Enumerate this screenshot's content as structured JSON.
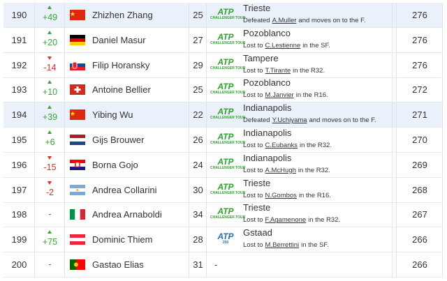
{
  "table": {
    "rows": [
      {
        "rank": "190",
        "change": "+49",
        "flag": "chn",
        "player": "Zhizhen Zhang",
        "age": "25",
        "logo": {
          "mark": "ATP",
          "label": "CHALLENGER TOUR"
        },
        "tournament": "Trieste",
        "result": {
          "prefix": "Defeated",
          "opponent": "A.Muller",
          "suffix": "and moves on to the F."
        },
        "points": "276",
        "highlight": true
      },
      {
        "rank": "191",
        "change": "+20",
        "flag": "ger",
        "player": "Daniel Masur",
        "age": "27",
        "logo": {
          "mark": "ATP",
          "label": "CHALLENGER TOUR"
        },
        "tournament": "Pozoblanco",
        "result": {
          "prefix": "Lost to",
          "opponent": "C.Lestienne",
          "suffix": "in the SF."
        },
        "points": "276",
        "highlight": false
      },
      {
        "rank": "192",
        "change": "-14",
        "flag": "svk",
        "player": "Filip Horansky",
        "age": "29",
        "logo": {
          "mark": "ATP",
          "label": "CHALLENGER TOUR"
        },
        "tournament": "Tampere",
        "result": {
          "prefix": "Lost to",
          "opponent": "T.Tirante",
          "suffix": "in the R32."
        },
        "points": "276",
        "highlight": false
      },
      {
        "rank": "193",
        "change": "+10",
        "flag": "sui",
        "player": "Antoine Bellier",
        "age": "25",
        "logo": {
          "mark": "ATP",
          "label": "CHALLENGER TOUR"
        },
        "tournament": "Pozoblanco",
        "result": {
          "prefix": "Lost to",
          "opponent": "M.Janvier",
          "suffix": "in the R16."
        },
        "points": "272",
        "highlight": false
      },
      {
        "rank": "194",
        "change": "+39",
        "flag": "chn",
        "player": "Yibing Wu",
        "age": "22",
        "logo": {
          "mark": "ATP",
          "label": "CHALLENGER TOUR"
        },
        "tournament": "Indianapolis",
        "result": {
          "prefix": "Defeated",
          "opponent": "Y.Uchiyama",
          "suffix": "and moves on to the F."
        },
        "points": "271",
        "highlight": true
      },
      {
        "rank": "195",
        "change": "+6",
        "flag": "ned",
        "player": "Gijs Brouwer",
        "age": "26",
        "logo": {
          "mark": "ATP",
          "label": "CHALLENGER TOUR"
        },
        "tournament": "Indianapolis",
        "result": {
          "prefix": "Lost to",
          "opponent": "C.Eubanks",
          "suffix": "in the R32."
        },
        "points": "270",
        "highlight": false
      },
      {
        "rank": "196",
        "change": "-15",
        "flag": "cro",
        "player": "Borna Gojo",
        "age": "24",
        "logo": {
          "mark": "ATP",
          "label": "CHALLENGER TOUR"
        },
        "tournament": "Indianapolis",
        "result": {
          "prefix": "Lost to",
          "opponent": "A.McHugh",
          "suffix": "in the R32."
        },
        "points": "269",
        "highlight": false
      },
      {
        "rank": "197",
        "change": "-2",
        "flag": "arg",
        "player": "Andrea Collarini",
        "age": "30",
        "logo": {
          "mark": "ATP",
          "label": "CHALLENGER TOUR"
        },
        "tournament": "Trieste",
        "result": {
          "prefix": "Lost to",
          "opponent": "N.Gombos",
          "suffix": "in the R16."
        },
        "points": "268",
        "highlight": false
      },
      {
        "rank": "198",
        "change": "-",
        "flag": "ita",
        "player": "Andrea Arnaboldi",
        "age": "34",
        "logo": {
          "mark": "ATP",
          "label": "CHALLENGER TOUR"
        },
        "tournament": "Trieste",
        "result": {
          "prefix": "Lost to",
          "opponent": "F.Agamenone",
          "suffix": "in the R32."
        },
        "points": "267",
        "highlight": false
      },
      {
        "rank": "199",
        "change": "+75",
        "flag": "aut",
        "player": "Dominic Thiem",
        "age": "28",
        "logo": {
          "mark": "ATP",
          "label": "250"
        },
        "tournament": "Gstaad",
        "result": {
          "prefix": "Lost to",
          "opponent": "M.Berrettini",
          "suffix": "in the SF."
        },
        "points": "266",
        "highlight": false
      },
      {
        "rank": "200",
        "change": "-",
        "flag": "por",
        "player": "Gastao Elias",
        "age": "31",
        "logo": null,
        "tournament": "-",
        "result": null,
        "points": "266",
        "highlight": false
      }
    ]
  }
}
